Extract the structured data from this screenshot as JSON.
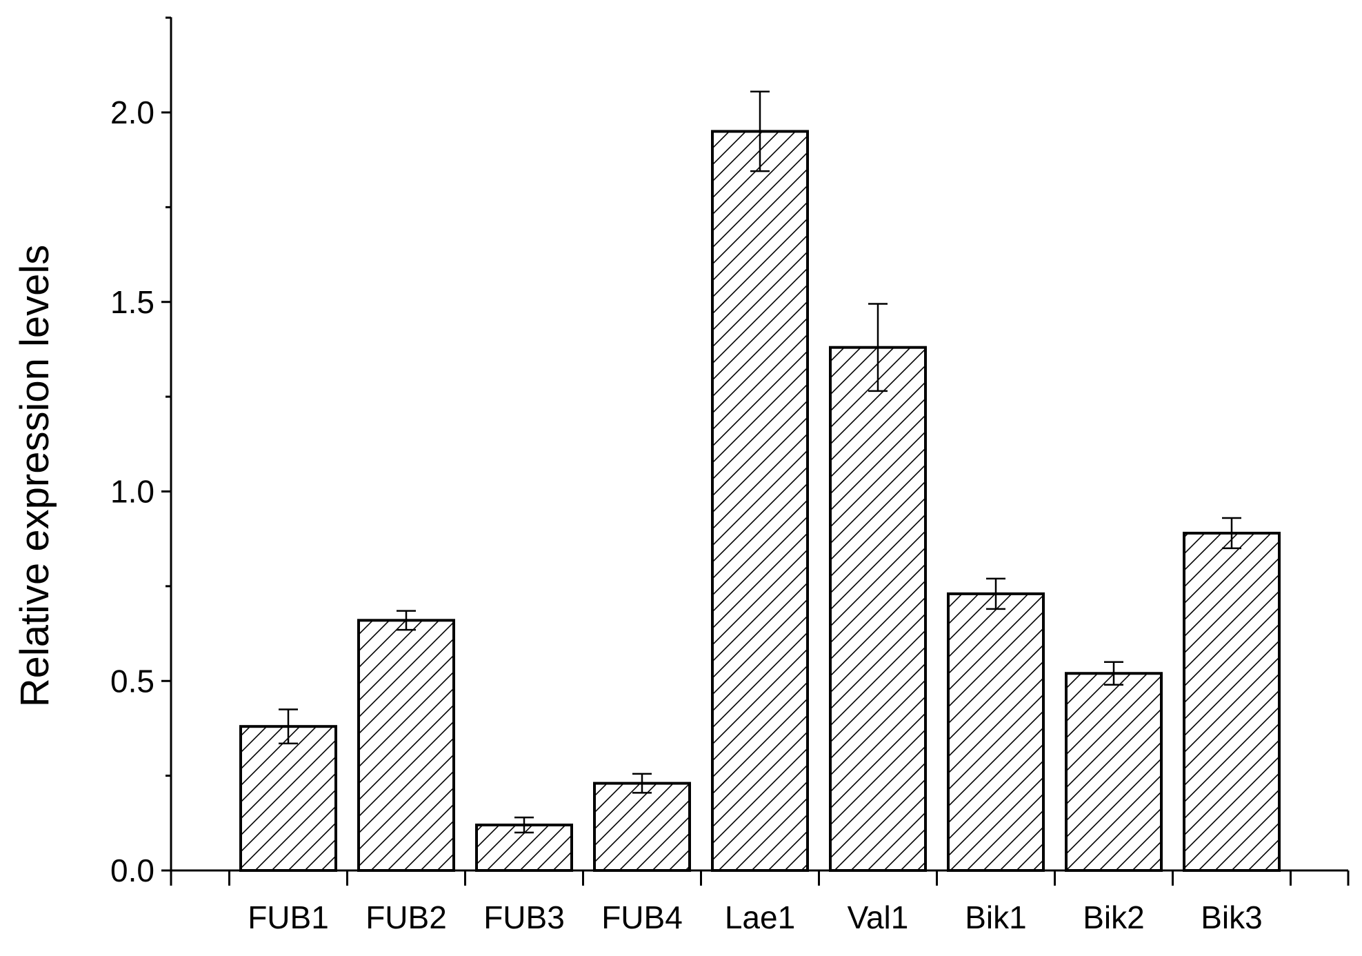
{
  "chart_data": {
    "type": "bar",
    "title": "",
    "xlabel": "",
    "ylabel": "Relative expression levels",
    "ylim": [
      0,
      2.25
    ],
    "yticks": [
      "0.0",
      "0.5",
      "1.0",
      "1.5",
      "2.0"
    ],
    "grid": false,
    "legend": "none",
    "bar_fill": "hatched",
    "colors": {
      "bar_fill": "#ffffff",
      "bar_edge": "#000000",
      "hatch": "#000000"
    },
    "categories": [
      "FUB1",
      "FUB2",
      "FUB3",
      "FUB4",
      "Lae1",
      "Val1",
      "Bik1",
      "Bik2",
      "Bik3"
    ],
    "values": [
      0.38,
      0.66,
      0.12,
      0.23,
      1.95,
      1.38,
      0.73,
      0.52,
      0.89
    ],
    "errors": [
      0.045,
      0.025,
      0.02,
      0.025,
      0.105,
      0.115,
      0.04,
      0.03,
      0.04
    ]
  }
}
